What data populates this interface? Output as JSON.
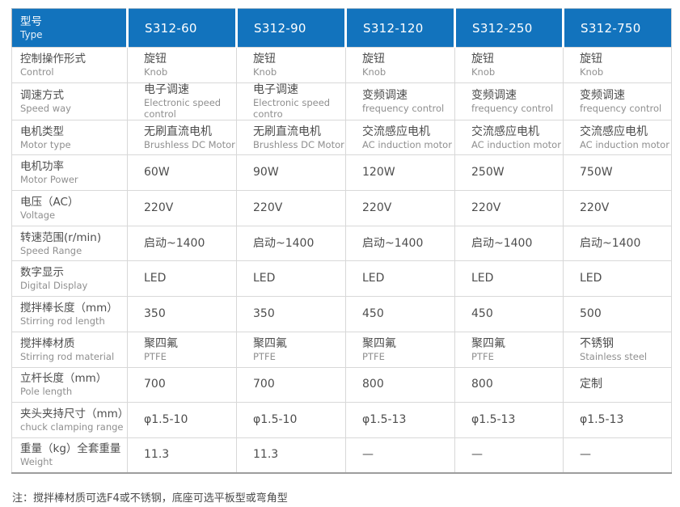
{
  "colors": {
    "header_bg": "#1273bd",
    "header_text": "#ffffff",
    "grid_line": "#d8d8d8",
    "outer_border": "#b9b9b9",
    "label_cn_text": "#4d4d4d",
    "label_en_text": "#8f8f8f"
  },
  "table": {
    "header": {
      "label_cn": "型号",
      "label_en": "Type",
      "models": [
        "S312-60",
        "S312-90",
        "S312-120",
        "S312-250",
        "S312-750"
      ]
    },
    "rows": [
      {
        "cn": "控制操作形式",
        "en": "Control",
        "cells": [
          {
            "main": "旋钮",
            "sub": "Knob"
          },
          {
            "main": "旋钮",
            "sub": "Knob"
          },
          {
            "main": "旋钮",
            "sub": "Knob"
          },
          {
            "main": "旋钮",
            "sub": "Knob"
          },
          {
            "main": "旋钮",
            "sub": "Knob"
          }
        ]
      },
      {
        "cn": "调速方式",
        "en": "Speed way",
        "cells": [
          {
            "main": "电子调速",
            "sub": "Electronic speed control"
          },
          {
            "main": "电子调速",
            "sub": "Electronic speed contro"
          },
          {
            "main": "变频调速",
            "sub": "frequency control"
          },
          {
            "main": "变频调速",
            "sub": "frequency control"
          },
          {
            "main": "变频调速",
            "sub": "frequency control"
          }
        ]
      },
      {
        "cn": "电机类型",
        "en": "Motor type",
        "cells": [
          {
            "main": "无刷直流电机",
            "sub": "Brushless DC Motor"
          },
          {
            "main": "无刷直流电机",
            "sub": "Brushless DC Motor"
          },
          {
            "main": "交流感应电机",
            "sub": "AC induction motor"
          },
          {
            "main": "交流感应电机",
            "sub": "AC induction motor"
          },
          {
            "main": "交流感应电机",
            "sub": "AC induction motor"
          }
        ]
      },
      {
        "cn": "电机功率",
        "en": "Motor Power",
        "cells": [
          {
            "main": "60W",
            "sub": ""
          },
          {
            "main": "90W",
            "sub": ""
          },
          {
            "main": "120W",
            "sub": ""
          },
          {
            "main": "250W",
            "sub": ""
          },
          {
            "main": "750W",
            "sub": ""
          }
        ]
      },
      {
        "cn": "电压（AC）",
        "en": "Voltage",
        "cells": [
          {
            "main": "220V",
            "sub": ""
          },
          {
            "main": "220V",
            "sub": ""
          },
          {
            "main": "220V",
            "sub": ""
          },
          {
            "main": "220V",
            "sub": ""
          },
          {
            "main": "220V",
            "sub": ""
          }
        ]
      },
      {
        "cn": "转速范围(r/min)",
        "en": "Speed Range",
        "cells": [
          {
            "main": "启动~1400",
            "sub": ""
          },
          {
            "main": "启动~1400",
            "sub": ""
          },
          {
            "main": "启动~1400",
            "sub": ""
          },
          {
            "main": "启动~1400",
            "sub": ""
          },
          {
            "main": "启动~1400",
            "sub": ""
          }
        ]
      },
      {
        "cn": "数字显示",
        "en": "Digital Display",
        "cells": [
          {
            "main": "LED",
            "sub": ""
          },
          {
            "main": "LED",
            "sub": ""
          },
          {
            "main": "LED",
            "sub": ""
          },
          {
            "main": "LED",
            "sub": ""
          },
          {
            "main": "LED",
            "sub": ""
          }
        ]
      },
      {
        "cn": "搅拌棒长度（mm）",
        "en": "Stirring rod length",
        "cells": [
          {
            "main": "350",
            "sub": ""
          },
          {
            "main": "350",
            "sub": ""
          },
          {
            "main": "450",
            "sub": ""
          },
          {
            "main": "450",
            "sub": ""
          },
          {
            "main": "500",
            "sub": ""
          }
        ]
      },
      {
        "cn": "搅拌棒材质",
        "en": "Stirring rod material",
        "cells": [
          {
            "main": "聚四氟",
            "sub": "PTFE"
          },
          {
            "main": "聚四氟",
            "sub": "PTFE"
          },
          {
            "main": "聚四氟",
            "sub": "PTFE"
          },
          {
            "main": "聚四氟",
            "sub": "PTFE"
          },
          {
            "main": "不锈钢",
            "sub": "Stainless steel"
          }
        ]
      },
      {
        "cn": "立杆长度（mm）",
        "en": "Pole length",
        "cells": [
          {
            "main": "700",
            "sub": ""
          },
          {
            "main": "700",
            "sub": ""
          },
          {
            "main": "800",
            "sub": ""
          },
          {
            "main": "800",
            "sub": ""
          },
          {
            "main": "定制",
            "sub": ""
          }
        ]
      },
      {
        "cn": "夹头夹持尺寸（mm）",
        "en": "chuck clamping range",
        "cells": [
          {
            "main": "φ1.5-10",
            "sub": ""
          },
          {
            "main": "φ1.5-10",
            "sub": ""
          },
          {
            "main": "φ1.5-13",
            "sub": ""
          },
          {
            "main": "φ1.5-13",
            "sub": ""
          },
          {
            "main": "φ1.5-13",
            "sub": ""
          }
        ]
      },
      {
        "cn": "重量（kg）全套重量",
        "en": "Weight",
        "cells": [
          {
            "main": "11.3",
            "sub": ""
          },
          {
            "main": "11.3",
            "sub": ""
          },
          {
            "main": "—",
            "sub": ""
          },
          {
            "main": "—",
            "sub": ""
          },
          {
            "main": "—",
            "sub": ""
          }
        ]
      }
    ]
  },
  "note": "注：搅拌棒材质可选F4或不锈钢，底座可选平板型或弯角型"
}
